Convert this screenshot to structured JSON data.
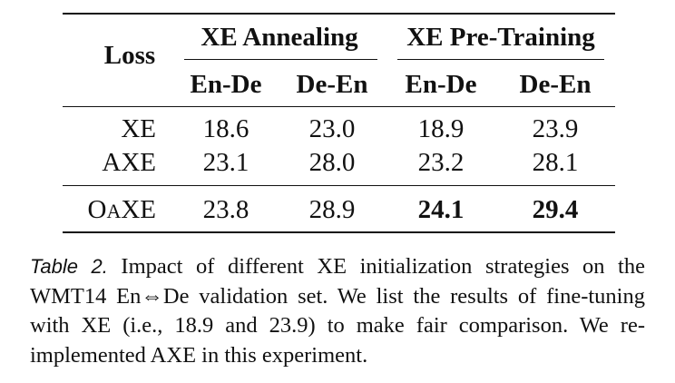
{
  "table": {
    "loss_header": "Loss",
    "group_headers": [
      "XE Annealing",
      "XE Pre-Training"
    ],
    "sub_headers": [
      "En-De",
      "De-En",
      "En-De",
      "De-En"
    ],
    "rows": [
      {
        "loss": "XE",
        "values": [
          "18.6",
          "23.0",
          "18.9",
          "23.9"
        ]
      },
      {
        "loss": "AXE",
        "values": [
          "23.1",
          "28.0",
          "23.2",
          "28.1"
        ]
      }
    ],
    "last_row": {
      "loss_prefix": "O",
      "loss_smallcap": "A",
      "loss_suffix": "XE",
      "values": [
        "23.8",
        "28.9",
        "24.1",
        "29.4"
      ]
    }
  },
  "caption": {
    "label": "Table 2.",
    "text": " Impact of different XE initialization strategies on the WMT14 En⇔De validation set. We list the results of fine-tuning with XE (i.e., 18.9 and 23.9) to make fair comparison. We re-implemented AXE in this experiment."
  }
}
